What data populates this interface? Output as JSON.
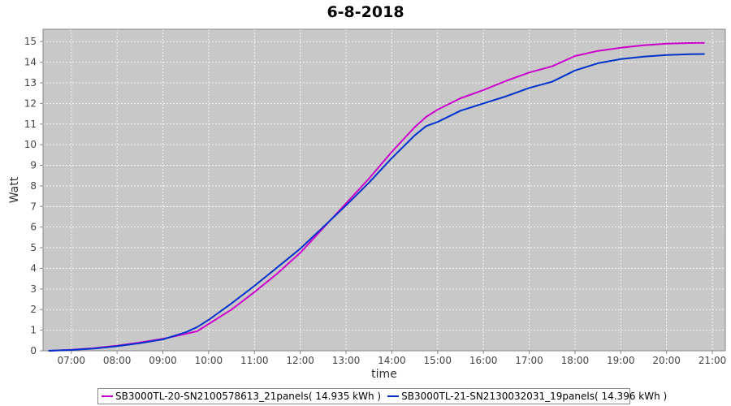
{
  "chart_data": {
    "type": "line",
    "title": "6-8-2018",
    "xlabel": "time",
    "ylabel": "Watt",
    "xlim": [
      "06:23",
      "21:17"
    ],
    "ylim": [
      0,
      15.6
    ],
    "x_ticks": [
      "07:00",
      "08:00",
      "09:00",
      "10:00",
      "11:00",
      "12:00",
      "13:00",
      "14:00",
      "15:00",
      "16:00",
      "17:00",
      "18:00",
      "19:00",
      "20:00",
      "21:00"
    ],
    "y_ticks": [
      0,
      1,
      2,
      3,
      4,
      5,
      6,
      7,
      8,
      9,
      10,
      11,
      12,
      13,
      14,
      15
    ],
    "grid": true,
    "background": "#c8c8c8",
    "legend_position": "bottom",
    "series": [
      {
        "name": "SB3000TL-20-SN2100578613_21panels( 14.935 kWh )",
        "color": "#cc00cc",
        "x": [
          "06:30",
          "07:00",
          "07:30",
          "08:00",
          "08:30",
          "09:00",
          "09:30",
          "09:45",
          "10:00",
          "10:30",
          "11:00",
          "11:30",
          "12:00",
          "12:30",
          "13:00",
          "13:30",
          "14:00",
          "14:30",
          "14:45",
          "15:00",
          "15:30",
          "16:00",
          "16:30",
          "17:00",
          "17:30",
          "18:00",
          "18:30",
          "19:00",
          "19:30",
          "20:00",
          "20:30",
          "20:50"
        ],
        "values": [
          0.0,
          0.05,
          0.13,
          0.25,
          0.4,
          0.58,
          0.82,
          0.95,
          1.3,
          2.0,
          2.85,
          3.75,
          4.75,
          5.95,
          7.15,
          8.35,
          9.65,
          10.85,
          11.35,
          11.7,
          12.25,
          12.65,
          13.1,
          13.5,
          13.8,
          14.3,
          14.55,
          14.7,
          14.82,
          14.9,
          14.93,
          14.94
        ]
      },
      {
        "name": "SB3000TL-21-SN2130032031_19panels( 14.396 kWh )",
        "color": "#0033cc",
        "x": [
          "06:30",
          "07:00",
          "07:30",
          "08:00",
          "08:30",
          "09:00",
          "09:30",
          "09:45",
          "10:00",
          "10:30",
          "11:00",
          "11:30",
          "12:00",
          "12:30",
          "13:00",
          "13:30",
          "14:00",
          "14:30",
          "14:45",
          "15:00",
          "15:30",
          "16:00",
          "16:30",
          "17:00",
          "17:30",
          "18:00",
          "18:30",
          "19:00",
          "19:30",
          "20:00",
          "20:30",
          "20:50"
        ],
        "values": [
          0.0,
          0.04,
          0.11,
          0.22,
          0.37,
          0.55,
          0.9,
          1.15,
          1.5,
          2.3,
          3.15,
          4.05,
          4.95,
          6.0,
          7.05,
          8.15,
          9.35,
          10.45,
          10.9,
          11.1,
          11.65,
          12.0,
          12.35,
          12.75,
          13.05,
          13.6,
          13.95,
          14.15,
          14.27,
          14.35,
          14.39,
          14.4
        ]
      }
    ]
  }
}
